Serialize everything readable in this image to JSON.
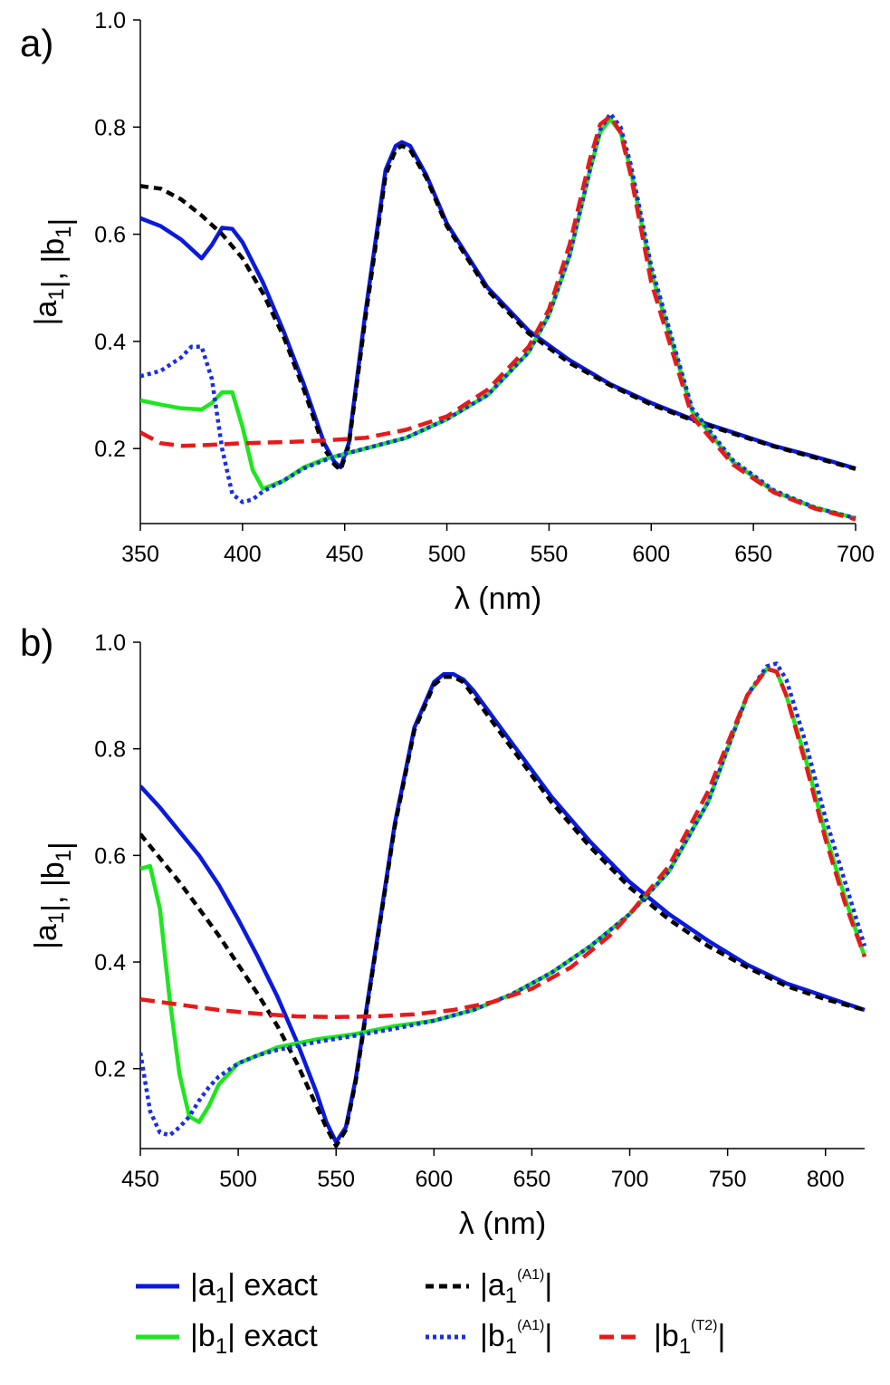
{
  "chart_data": [
    {
      "panel": "a)",
      "type": "line",
      "xlabel": "λ (nm)",
      "ylabel": "|a1|, |b1|",
      "xlim": [
        350,
        700
      ],
      "ylim": [
        0.06,
        1.0
      ],
      "xticks": [
        350,
        400,
        450,
        500,
        550,
        600,
        650,
        700
      ],
      "yticks": [
        0.2,
        0.4,
        0.6,
        0.8,
        1.0
      ],
      "xtick_labels": [
        "350",
        "400",
        "450",
        "500",
        "550",
        "600",
        "650",
        "700"
      ],
      "ytick_labels": [
        "0.2",
        "0.4",
        "0.6",
        "0.8",
        "1.0"
      ],
      "series": [
        {
          "key": "a1_exact",
          "name": "|a1| exact",
          "color": "#0a1adc",
          "style": "solid",
          "x": [
            350,
            360,
            370,
            380,
            385,
            390,
            395,
            400,
            410,
            420,
            430,
            440,
            445,
            448,
            452,
            460,
            470,
            475,
            478,
            482,
            490,
            500,
            520,
            540,
            560,
            580,
            600,
            620,
            640,
            660,
            680,
            700
          ],
          "y": [
            0.63,
            0.615,
            0.59,
            0.555,
            0.58,
            0.612,
            0.61,
            0.585,
            0.51,
            0.42,
            0.32,
            0.21,
            0.175,
            0.165,
            0.21,
            0.45,
            0.72,
            0.765,
            0.772,
            0.765,
            0.71,
            0.62,
            0.5,
            0.42,
            0.365,
            0.32,
            0.285,
            0.255,
            0.23,
            0.205,
            0.185,
            0.163
          ]
        },
        {
          "key": "a1_A1",
          "name": "|a1(A1)|",
          "color": "#000000",
          "style": "dash",
          "x": [
            350,
            360,
            370,
            380,
            390,
            400,
            410,
            420,
            430,
            440,
            445,
            448,
            452,
            460,
            470,
            475,
            478,
            482,
            490,
            500,
            520,
            540,
            560,
            580,
            600,
            620,
            640,
            660,
            680,
            700
          ],
          "y": [
            0.69,
            0.685,
            0.665,
            0.635,
            0.6,
            0.555,
            0.49,
            0.41,
            0.31,
            0.2,
            0.17,
            0.16,
            0.205,
            0.44,
            0.71,
            0.758,
            0.765,
            0.758,
            0.705,
            0.615,
            0.495,
            0.415,
            0.36,
            0.318,
            0.282,
            0.253,
            0.228,
            0.204,
            0.183,
            0.162
          ]
        },
        {
          "key": "b1_exact",
          "name": "|b1| exact",
          "color": "#1ee61e",
          "style": "solid",
          "x": [
            350,
            360,
            370,
            380,
            385,
            390,
            395,
            400,
            405,
            410,
            420,
            430,
            440,
            450,
            460,
            480,
            500,
            520,
            540,
            550,
            560,
            570,
            575,
            580,
            585,
            590,
            600,
            620,
            640,
            660,
            680,
            700
          ],
          "y": [
            0.29,
            0.282,
            0.275,
            0.273,
            0.285,
            0.305,
            0.305,
            0.24,
            0.16,
            0.125,
            0.14,
            0.165,
            0.18,
            0.19,
            0.2,
            0.22,
            0.255,
            0.3,
            0.38,
            0.45,
            0.56,
            0.72,
            0.79,
            0.815,
            0.79,
            0.72,
            0.53,
            0.27,
            0.175,
            0.12,
            0.09,
            0.07
          ]
        },
        {
          "key": "b1_A1",
          "name": "|b1(A1)|",
          "color": "#1a2ee6",
          "style": "dot",
          "x": [
            350,
            360,
            370,
            375,
            380,
            385,
            390,
            395,
            400,
            405,
            410,
            420,
            430,
            440,
            450,
            460,
            480,
            500,
            520,
            540,
            550,
            560,
            570,
            575,
            580,
            585,
            590,
            600,
            620,
            640,
            660,
            680,
            700
          ],
          "y": [
            0.335,
            0.345,
            0.37,
            0.39,
            0.39,
            0.33,
            0.2,
            0.115,
            0.1,
            0.105,
            0.12,
            0.14,
            0.163,
            0.178,
            0.19,
            0.2,
            0.22,
            0.255,
            0.3,
            0.38,
            0.45,
            0.56,
            0.72,
            0.795,
            0.825,
            0.8,
            0.73,
            0.54,
            0.275,
            0.178,
            0.122,
            0.09,
            0.07
          ]
        },
        {
          "key": "b1_T2",
          "name": "|b1(T2)|",
          "color": "#e61a1a",
          "style": "longdash",
          "x": [
            350,
            360,
            370,
            380,
            400,
            420,
            440,
            460,
            480,
            500,
            520,
            540,
            550,
            560,
            570,
            575,
            580,
            585,
            590,
            600,
            620,
            640,
            660,
            680,
            700
          ],
          "y": [
            0.23,
            0.21,
            0.205,
            0.206,
            0.21,
            0.212,
            0.215,
            0.22,
            0.235,
            0.26,
            0.31,
            0.39,
            0.46,
            0.58,
            0.74,
            0.805,
            0.82,
            0.79,
            0.71,
            0.51,
            0.26,
            0.17,
            0.118,
            0.088,
            0.068
          ]
        }
      ]
    },
    {
      "panel": "b)",
      "type": "line",
      "xlabel": "λ (nm)",
      "ylabel": "|a1|, |b1|",
      "xlim": [
        450,
        820
      ],
      "ylim": [
        0.05,
        1.0
      ],
      "xticks": [
        450,
        500,
        550,
        600,
        650,
        700,
        750,
        800
      ],
      "yticks": [
        0.2,
        0.4,
        0.6,
        0.8,
        1.0
      ],
      "xtick_labels": [
        "450",
        "500",
        "550",
        "600",
        "650",
        "700",
        "750",
        "800"
      ],
      "ytick_labels": [
        "0.2",
        "0.4",
        "0.6",
        "0.8",
        "1.0"
      ],
      "series": [
        {
          "key": "a1_exact",
          "name": "|a1| exact",
          "color": "#0a1adc",
          "style": "solid",
          "x": [
            450,
            460,
            470,
            480,
            490,
            500,
            510,
            520,
            530,
            540,
            545,
            550,
            555,
            560,
            570,
            580,
            590,
            600,
            605,
            610,
            615,
            620,
            640,
            660,
            680,
            700,
            720,
            740,
            760,
            780,
            800,
            820
          ],
          "y": [
            0.73,
            0.69,
            0.645,
            0.6,
            0.545,
            0.48,
            0.41,
            0.335,
            0.25,
            0.155,
            0.1,
            0.062,
            0.09,
            0.18,
            0.42,
            0.66,
            0.84,
            0.925,
            0.94,
            0.94,
            0.93,
            0.91,
            0.81,
            0.71,
            0.625,
            0.55,
            0.49,
            0.44,
            0.395,
            0.36,
            0.335,
            0.31
          ]
        },
        {
          "key": "a1_A1",
          "name": "|a1(A1)|",
          "color": "#000000",
          "style": "dash",
          "x": [
            450,
            460,
            470,
            480,
            490,
            500,
            510,
            520,
            530,
            540,
            545,
            550,
            555,
            560,
            570,
            580,
            590,
            600,
            605,
            610,
            615,
            620,
            640,
            660,
            680,
            700,
            720,
            740,
            760,
            780,
            800,
            820
          ],
          "y": [
            0.64,
            0.595,
            0.55,
            0.5,
            0.45,
            0.395,
            0.34,
            0.28,
            0.21,
            0.13,
            0.09,
            0.055,
            0.085,
            0.175,
            0.415,
            0.655,
            0.835,
            0.92,
            0.935,
            0.935,
            0.925,
            0.9,
            0.8,
            0.7,
            0.615,
            0.54,
            0.48,
            0.43,
            0.39,
            0.355,
            0.33,
            0.31
          ]
        },
        {
          "key": "b1_exact",
          "name": "|b1| exact",
          "color": "#1ee61e",
          "style": "solid",
          "x": [
            450,
            455,
            460,
            465,
            470,
            475,
            480,
            485,
            490,
            500,
            520,
            540,
            560,
            580,
            600,
            620,
            640,
            660,
            680,
            700,
            720,
            740,
            750,
            760,
            770,
            775,
            780,
            790,
            800,
            810,
            820
          ],
          "y": [
            0.575,
            0.58,
            0.5,
            0.33,
            0.19,
            0.11,
            0.1,
            0.13,
            0.17,
            0.21,
            0.24,
            0.255,
            0.265,
            0.28,
            0.29,
            0.31,
            0.34,
            0.38,
            0.43,
            0.49,
            0.57,
            0.7,
            0.8,
            0.9,
            0.95,
            0.945,
            0.9,
            0.78,
            0.64,
            0.52,
            0.41
          ]
        },
        {
          "key": "b1_A1",
          "name": "|b1(A1)|",
          "color": "#1a2ee6",
          "style": "dot",
          "x": [
            450,
            455,
            460,
            465,
            470,
            475,
            480,
            485,
            490,
            500,
            510,
            520,
            540,
            560,
            580,
            600,
            620,
            640,
            660,
            680,
            700,
            720,
            740,
            750,
            760,
            770,
            775,
            780,
            790,
            800,
            810,
            820
          ],
          "y": [
            0.23,
            0.12,
            0.08,
            0.075,
            0.09,
            0.11,
            0.14,
            0.165,
            0.185,
            0.21,
            0.225,
            0.235,
            0.25,
            0.262,
            0.275,
            0.29,
            0.31,
            0.34,
            0.38,
            0.43,
            0.49,
            0.57,
            0.7,
            0.8,
            0.9,
            0.955,
            0.96,
            0.93,
            0.81,
            0.67,
            0.55,
            0.43
          ]
        },
        {
          "key": "b1_T2",
          "name": "|b1(T2)|",
          "color": "#e61a1a",
          "style": "longdash",
          "x": [
            450,
            470,
            490,
            510,
            530,
            550,
            570,
            590,
            610,
            630,
            650,
            670,
            690,
            700,
            720,
            740,
            750,
            760,
            770,
            775,
            780,
            790,
            800,
            810,
            820
          ],
          "y": [
            0.33,
            0.32,
            0.31,
            0.303,
            0.298,
            0.297,
            0.298,
            0.302,
            0.31,
            0.325,
            0.35,
            0.39,
            0.45,
            0.49,
            0.58,
            0.72,
            0.81,
            0.9,
            0.95,
            0.945,
            0.9,
            0.77,
            0.63,
            0.51,
            0.41
          ]
        }
      ]
    }
  ],
  "legend": {
    "items": [
      {
        "key": "a1_exact",
        "symbol": "a",
        "super": "",
        "suffix": " exact",
        "color": "#0a1adc",
        "style": "solid"
      },
      {
        "key": "a1_A1",
        "symbol": "a",
        "super": "(A1)",
        "suffix": "",
        "color": "#000000",
        "style": "dash"
      },
      {
        "key": "b1_exact",
        "symbol": "b",
        "super": "",
        "suffix": " exact",
        "color": "#1ee61e",
        "style": "solid"
      },
      {
        "key": "b1_A1",
        "symbol": "b",
        "super": "(A1)",
        "suffix": "",
        "color": "#1a2ee6",
        "style": "dot"
      },
      {
        "key": "b1_T2",
        "symbol": "b",
        "super": "(T2)",
        "suffix": "",
        "color": "#e61a1a",
        "style": "longdash"
      }
    ]
  }
}
